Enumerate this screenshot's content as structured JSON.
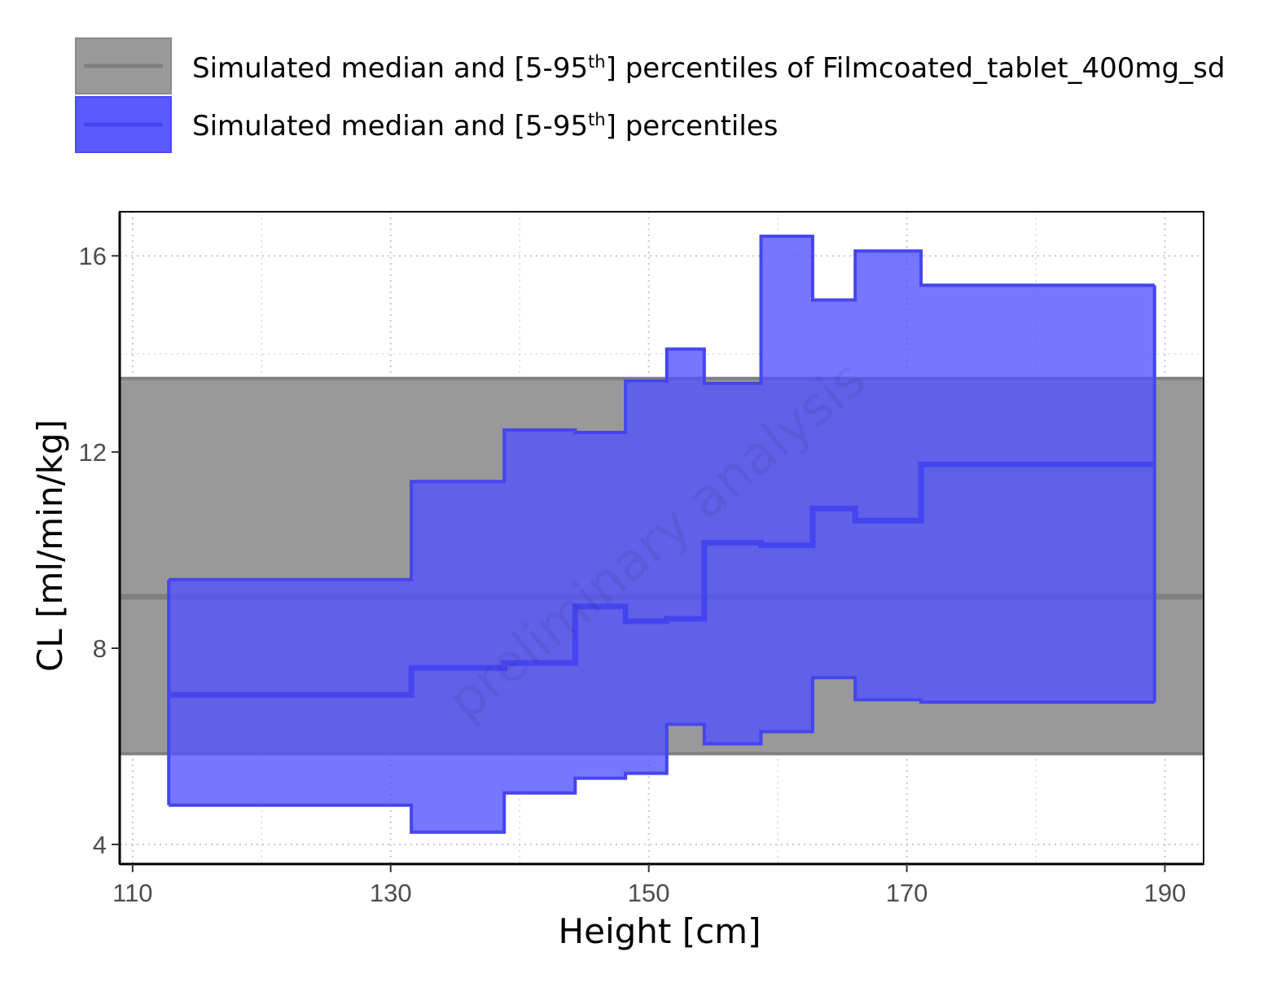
{
  "chart_data": {
    "type": "area",
    "xlabel": "Height [cm]",
    "ylabel": "CL [ml/min/kg]",
    "xlim": [
      109,
      193
    ],
    "ylim": [
      3.6,
      16.9
    ],
    "xticks": [
      110,
      130,
      150,
      170,
      190
    ],
    "yticks": [
      4,
      8,
      12,
      16
    ],
    "minor_x": [
      120,
      140,
      160,
      180
    ],
    "minor_y": [
      6,
      10,
      14
    ],
    "grid": true,
    "legend_position": "top",
    "watermark": "preliminary analysis",
    "legend": [
      {
        "prefix": "Simulated median and [5-95",
        "sup": "th",
        "suffix": "] percentiles of Filmcoated_tablet_400mg_sd",
        "color": "#999999",
        "line_color": "#808080"
      },
      {
        "prefix": "Simulated median and [5-95",
        "sup": "th",
        "suffix": "] percentiles",
        "color": "#5a5aff",
        "line_color": "#4545f0"
      }
    ],
    "reference": {
      "name": "Simulated median and [5-95th] percentiles of Filmcoated_tablet_400mg_sd",
      "median": 9.05,
      "p5": 5.85,
      "p95": 13.5
    },
    "series": {
      "name": "Simulated median and [5-95th] percentiles",
      "bins": [
        {
          "x0": 112.8,
          "x1": 131.6,
          "p5": 4.8,
          "median": 7.05,
          "p95": 9.4
        },
        {
          "x0": 131.6,
          "x1": 138.8,
          "p5": 4.25,
          "median": 7.6,
          "p95": 11.4
        },
        {
          "x0": 138.8,
          "x1": 144.3,
          "p5": 5.05,
          "median": 7.7,
          "p95": 12.45
        },
        {
          "x0": 144.3,
          "x1": 148.2,
          "p5": 5.35,
          "median": 8.85,
          "p95": 12.4
        },
        {
          "x0": 148.2,
          "x1": 151.4,
          "p5": 5.45,
          "median": 8.55,
          "p95": 13.45
        },
        {
          "x0": 151.4,
          "x1": 154.3,
          "p5": 6.45,
          "median": 8.6,
          "p95": 14.1
        },
        {
          "x0": 154.3,
          "x1": 158.7,
          "p5": 6.05,
          "median": 10.15,
          "p95": 13.4
        },
        {
          "x0": 158.7,
          "x1": 162.7,
          "p5": 6.3,
          "median": 10.1,
          "p95": 16.4
        },
        {
          "x0": 162.7,
          "x1": 166.0,
          "p5": 7.4,
          "median": 10.85,
          "p95": 15.1
        },
        {
          "x0": 166.0,
          "x1": 171.1,
          "p5": 6.95,
          "median": 10.6,
          "p95": 16.1
        },
        {
          "x0": 171.1,
          "x1": 189.2,
          "p5": 6.9,
          "median": 11.75,
          "p95": 15.4
        }
      ]
    }
  }
}
